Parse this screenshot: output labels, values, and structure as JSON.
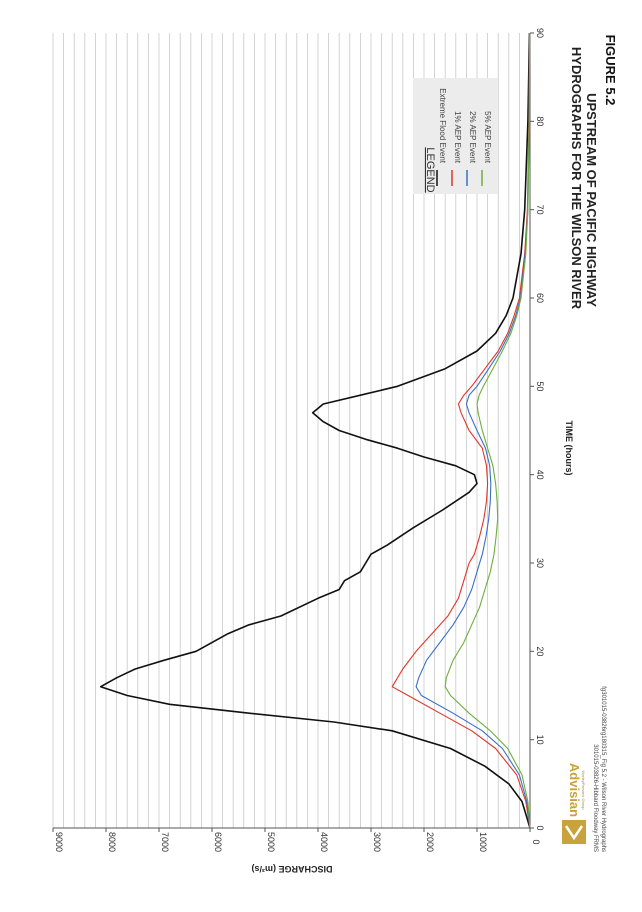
{
  "figure_label": "FIGURE 5.2",
  "title_line1": "HYDROGRAPHS FOR THE WILSON RIVER",
  "title_line2": "UPSTREAM OF PACIFIC HIGHWAY",
  "company": {
    "name": "Advisian",
    "tagline": "WorleyParsons Group"
  },
  "footer": {
    "line1": "301015-03826-Hibbard Floodway FRMS",
    "line2": "fg301015-03826rg180315_Fig 5.2 - Wilson River Hydrographs"
  },
  "legend": {
    "title": "LEGEND"
  },
  "chart_data": {
    "type": "line",
    "xlabel": "TIME (hours)",
    "ylabel": "DISCHARGE (m³/s)",
    "xlim": [
      0,
      90
    ],
    "ylim": [
      0,
      9000
    ],
    "xticks": [
      0,
      10,
      20,
      30,
      40,
      50,
      60,
      70,
      80,
      90
    ],
    "yticks": [
      0,
      1000,
      2000,
      3000,
      4000,
      5000,
      6000,
      7000,
      8000,
      9000
    ],
    "grid": "horizontal gridlines every 200 m³/s",
    "legend_position": "top-right",
    "series": [
      {
        "name": "Extreme Flood Event",
        "color": "#111111",
        "points": [
          [
            0,
            0
          ],
          [
            3,
            150
          ],
          [
            5,
            400
          ],
          [
            7,
            850
          ],
          [
            9,
            1500
          ],
          [
            11,
            2600
          ],
          [
            12,
            3700
          ],
          [
            13,
            5300
          ],
          [
            14,
            6800
          ],
          [
            15,
            7600
          ],
          [
            16,
            8100
          ],
          [
            17,
            7800
          ],
          [
            18,
            7450
          ],
          [
            19,
            6900
          ],
          [
            20,
            6300
          ],
          [
            22,
            5700
          ],
          [
            23,
            5300
          ],
          [
            24,
            4700
          ],
          [
            26,
            4000
          ],
          [
            27,
            3600
          ],
          [
            28,
            3500
          ],
          [
            29,
            3200
          ],
          [
            30,
            3100
          ],
          [
            31,
            3000
          ],
          [
            32,
            2700
          ],
          [
            34,
            2200
          ],
          [
            36,
            1650
          ],
          [
            38,
            1150
          ],
          [
            39,
            1000
          ],
          [
            40,
            1050
          ],
          [
            41,
            1400
          ],
          [
            42,
            2000
          ],
          [
            43,
            2500
          ],
          [
            44,
            3100
          ],
          [
            45,
            3600
          ],
          [
            46,
            3900
          ],
          [
            47,
            4100
          ],
          [
            48,
            3900
          ],
          [
            49,
            3200
          ],
          [
            50,
            2500
          ],
          [
            52,
            1600
          ],
          [
            54,
            1000
          ],
          [
            56,
            650
          ],
          [
            58,
            450
          ],
          [
            60,
            320
          ],
          [
            65,
            170
          ],
          [
            70,
            100
          ],
          [
            80,
            40
          ],
          [
            90,
            10
          ]
        ]
      },
      {
        "name": "1% AEP Event",
        "color": "#e0352a",
        "points": [
          [
            0,
            0
          ],
          [
            3,
            80
          ],
          [
            6,
            250
          ],
          [
            9,
            650
          ],
          [
            11,
            1100
          ],
          [
            13,
            1700
          ],
          [
            15,
            2300
          ],
          [
            16,
            2600
          ],
          [
            17,
            2500
          ],
          [
            18,
            2400
          ],
          [
            20,
            2150
          ],
          [
            22,
            1850
          ],
          [
            24,
            1550
          ],
          [
            26,
            1350
          ],
          [
            28,
            1250
          ],
          [
            30,
            1150
          ],
          [
            31,
            1050
          ],
          [
            33,
            950
          ],
          [
            35,
            870
          ],
          [
            37,
            820
          ],
          [
            39,
            800
          ],
          [
            41,
            820
          ],
          [
            43,
            900
          ],
          [
            45,
            1150
          ],
          [
            47,
            1300
          ],
          [
            48,
            1350
          ],
          [
            49,
            1250
          ],
          [
            50,
            1100
          ],
          [
            52,
            850
          ],
          [
            54,
            600
          ],
          [
            56,
            420
          ],
          [
            58,
            300
          ],
          [
            60,
            200
          ],
          [
            65,
            100
          ],
          [
            70,
            50
          ],
          [
            80,
            20
          ],
          [
            90,
            5
          ]
        ]
      },
      {
        "name": "2% AEP Event",
        "color": "#3a6fc9",
        "points": [
          [
            0,
            0
          ],
          [
            3,
            60
          ],
          [
            6,
            200
          ],
          [
            9,
            520
          ],
          [
            11,
            900
          ],
          [
            13,
            1450
          ],
          [
            15,
            2050
          ],
          [
            16,
            2150
          ],
          [
            17,
            2100
          ],
          [
            19,
            1950
          ],
          [
            21,
            1700
          ],
          [
            23,
            1450
          ],
          [
            25,
            1250
          ],
          [
            27,
            1100
          ],
          [
            29,
            1000
          ],
          [
            31,
            900
          ],
          [
            33,
            830
          ],
          [
            35,
            780
          ],
          [
            37,
            750
          ],
          [
            39,
            740
          ],
          [
            41,
            760
          ],
          [
            43,
            840
          ],
          [
            45,
            1000
          ],
          [
            47,
            1150
          ],
          [
            48,
            1200
          ],
          [
            49,
            1150
          ],
          [
            50,
            1000
          ],
          [
            52,
            780
          ],
          [
            54,
            560
          ],
          [
            56,
            390
          ],
          [
            58,
            270
          ],
          [
            60,
            180
          ],
          [
            65,
            90
          ],
          [
            70,
            40
          ],
          [
            80,
            15
          ],
          [
            90,
            5
          ]
        ]
      },
      {
        "name": "5% AEP Event",
        "color": "#6cae3c",
        "points": [
          [
            0,
            0
          ],
          [
            3,
            40
          ],
          [
            6,
            150
          ],
          [
            9,
            420
          ],
          [
            11,
            750
          ],
          [
            13,
            1150
          ],
          [
            15,
            1500
          ],
          [
            16,
            1600
          ],
          [
            17,
            1580
          ],
          [
            19,
            1450
          ],
          [
            21,
            1250
          ],
          [
            23,
            1100
          ],
          [
            25,
            950
          ],
          [
            27,
            850
          ],
          [
            29,
            750
          ],
          [
            31,
            680
          ],
          [
            33,
            640
          ],
          [
            35,
            610
          ],
          [
            37,
            620
          ],
          [
            39,
            650
          ],
          [
            41,
            700
          ],
          [
            43,
            800
          ],
          [
            45,
            900
          ],
          [
            47,
            980
          ],
          [
            48,
            1000
          ],
          [
            49,
            960
          ],
          [
            50,
            880
          ],
          [
            52,
            700
          ],
          [
            54,
            520
          ],
          [
            56,
            360
          ],
          [
            58,
            250
          ],
          [
            60,
            170
          ],
          [
            65,
            80
          ],
          [
            70,
            40
          ],
          [
            80,
            15
          ],
          [
            90,
            5
          ]
        ]
      }
    ]
  }
}
